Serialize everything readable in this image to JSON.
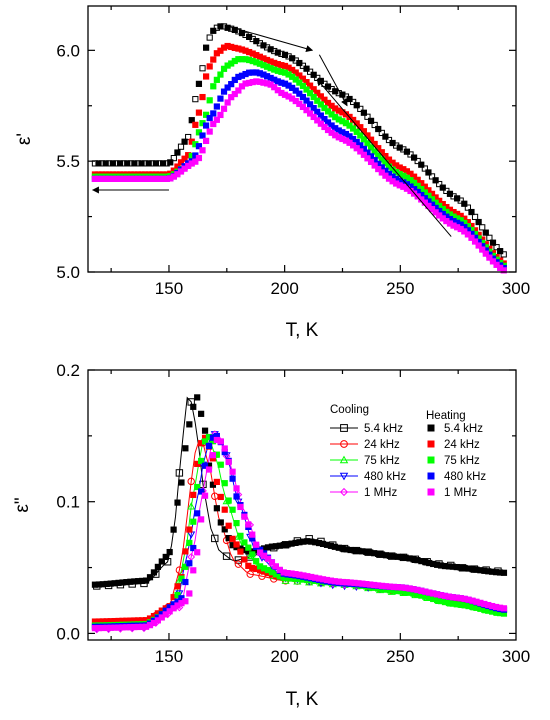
{
  "chart_data": [
    {
      "type": "scatter",
      "title": "",
      "xlabel": "T, K",
      "ylabel": "ε'",
      "xlim": [
        115,
        300
      ],
      "ylim": [
        5.0,
        6.2
      ],
      "xticks": [
        "150",
        "200",
        "250",
        "300"
      ],
      "yticks": [
        "5.0",
        "5.5",
        "6.0"
      ],
      "grid": false,
      "legend": "none",
      "series": [
        {
          "color": "#000000",
          "x": [
            118,
            150,
            158,
            163,
            167,
            170,
            173,
            176,
            200,
            225,
            250,
            275,
            296
          ],
          "y": [
            5.49,
            5.49,
            5.6,
            5.85,
            6.05,
            6.1,
            6.11,
            6.1,
            5.98,
            5.8,
            5.56,
            5.33,
            5.07
          ]
        },
        {
          "color": "#ff0000",
          "x": [
            118,
            150,
            158,
            163,
            167,
            171,
            175,
            179,
            200,
            225,
            250,
            275,
            296
          ],
          "y": [
            5.44,
            5.44,
            5.52,
            5.72,
            5.92,
            5.99,
            6.02,
            6.01,
            5.93,
            5.72,
            5.47,
            5.26,
            5.03
          ]
        },
        {
          "color": "#00ff00",
          "x": [
            118,
            150,
            158,
            165,
            170,
            175,
            180,
            183,
            200,
            225,
            250,
            275,
            296
          ],
          "y": [
            5.43,
            5.43,
            5.48,
            5.68,
            5.86,
            5.93,
            5.96,
            5.96,
            5.9,
            5.68,
            5.44,
            5.24,
            5.02
          ]
        },
        {
          "color": "#0000ff",
          "x": [
            118,
            150,
            160,
            168,
            175,
            180,
            185,
            188,
            200,
            225,
            250,
            275,
            296
          ],
          "y": [
            5.42,
            5.42,
            5.5,
            5.7,
            5.83,
            5.88,
            5.9,
            5.9,
            5.85,
            5.63,
            5.41,
            5.22,
            5.01
          ]
        },
        {
          "color": "#ff00ff",
          "x": [
            118,
            150,
            162,
            170,
            178,
            183,
            188,
            193,
            200,
            225,
            250,
            275,
            296
          ],
          "y": [
            5.42,
            5.42,
            5.5,
            5.68,
            5.8,
            5.85,
            5.86,
            5.85,
            5.8,
            5.6,
            5.39,
            5.2,
            5.0
          ]
        }
      ],
      "arrows": [
        {
          "from": [
            175,
            6.11
          ],
          "to": [
            212,
            6.0
          ]
        },
        {
          "from": [
            215,
            5.98
          ],
          "to": [
            227,
            5.75
          ]
        },
        {
          "from": [
            272,
            5.16
          ],
          "to": [
            214,
            5.87
          ]
        },
        {
          "from": [
            150,
            5.37
          ],
          "to": [
            117,
            5.37
          ]
        }
      ]
    },
    {
      "type": "scatter",
      "title": "",
      "xlabel": "T, K",
      "ylabel": "ε\"",
      "xlim": [
        115,
        300
      ],
      "ylim": [
        -0.005,
        0.2
      ],
      "xticks": [
        "150",
        "200",
        "250",
        "300"
      ],
      "yticks": [
        "0.0",
        "0.1",
        "0.2"
      ],
      "grid": false,
      "legend": "top-right",
      "legend_titles": {
        "cooling": "Cooling",
        "heating": "Heating"
      },
      "series": [
        {
          "name": "5.4 kHz",
          "mode": "Cooling",
          "color": "#000000",
          "marker": "open-square",
          "x": [
            118,
            140,
            150,
            153,
            155,
            157,
            158,
            160,
            163,
            165,
            168,
            172,
            178,
            185,
            195,
            210,
            230,
            250,
            270,
            280,
            295
          ],
          "y": [
            0.036,
            0.038,
            0.055,
            0.09,
            0.13,
            0.165,
            0.18,
            0.175,
            0.14,
            0.11,
            0.08,
            0.062,
            0.055,
            0.058,
            0.065,
            0.072,
            0.063,
            0.058,
            0.052,
            0.049,
            0.047
          ]
        },
        {
          "name": "24 kHz",
          "mode": "Cooling",
          "color": "#ff0000",
          "marker": "open-circle",
          "x": [
            118,
            140,
            150,
            155,
            158,
            160,
            162,
            164,
            167,
            172,
            178,
            185,
            200,
            225,
            250,
            275,
            295
          ],
          "y": [
            0.008,
            0.009,
            0.02,
            0.05,
            0.09,
            0.12,
            0.145,
            0.148,
            0.13,
            0.085,
            0.055,
            0.045,
            0.04,
            0.038,
            0.032,
            0.024,
            0.017
          ]
        },
        {
          "name": "75 kHz",
          "mode": "Cooling",
          "color": "#00ff00",
          "marker": "open-triangle-up",
          "x": [
            118,
            140,
            152,
            157,
            160,
            163,
            165,
            167,
            170,
            175,
            182,
            190,
            200,
            225,
            250,
            275,
            295
          ],
          "y": [
            0.005,
            0.006,
            0.02,
            0.06,
            0.1,
            0.13,
            0.148,
            0.15,
            0.135,
            0.1,
            0.065,
            0.048,
            0.04,
            0.037,
            0.031,
            0.022,
            0.015
          ]
        },
        {
          "name": "480 kHz",
          "mode": "Cooling",
          "color": "#0000ff",
          "marker": "open-triangle-down",
          "x": [
            118,
            140,
            153,
            158,
            162,
            165,
            168,
            171,
            175,
            180,
            188,
            200,
            225,
            250,
            275,
            295
          ],
          "y": [
            0.004,
            0.005,
            0.02,
            0.06,
            0.1,
            0.13,
            0.15,
            0.152,
            0.135,
            0.1,
            0.06,
            0.042,
            0.036,
            0.033,
            0.025,
            0.017
          ]
        },
        {
          "name": "1 MHz",
          "mode": "Cooling",
          "color": "#ff00ff",
          "marker": "open-diamond",
          "x": [
            118,
            140,
            155,
            160,
            165,
            168,
            170,
            172,
            176,
            182,
            190,
            200,
            225,
            250,
            275,
            295
          ],
          "y": [
            0.003,
            0.004,
            0.02,
            0.06,
            0.11,
            0.14,
            0.152,
            0.15,
            0.13,
            0.095,
            0.06,
            0.044,
            0.037,
            0.034,
            0.026,
            0.018
          ]
        },
        {
          "name": "5.4 kHz",
          "mode": "Heating",
          "color": "#000000",
          "marker": "filled-square",
          "x": [
            118,
            140,
            150,
            155,
            157,
            160,
            162,
            165,
            168,
            172,
            178,
            185,
            195,
            210,
            230,
            250,
            270,
            295
          ],
          "y": [
            0.037,
            0.04,
            0.06,
            0.11,
            0.14,
            0.17,
            0.18,
            0.16,
            0.12,
            0.085,
            0.066,
            0.062,
            0.066,
            0.07,
            0.063,
            0.058,
            0.051,
            0.046
          ]
        },
        {
          "name": "24 kHz",
          "mode": "Heating",
          "color": "#ff0000",
          "marker": "filled-square",
          "x": [
            118,
            140,
            150,
            155,
            158,
            161,
            163,
            165,
            168,
            172,
            178,
            185,
            200,
            225,
            250,
            275,
            295
          ],
          "y": [
            0.009,
            0.01,
            0.02,
            0.04,
            0.07,
            0.11,
            0.14,
            0.15,
            0.14,
            0.105,
            0.07,
            0.05,
            0.042,
            0.039,
            0.033,
            0.025,
            0.018
          ]
        },
        {
          "name": "75 kHz",
          "mode": "Heating",
          "color": "#00ff00",
          "marker": "filled-square",
          "x": [
            118,
            140,
            152,
            157,
            160,
            163,
            165,
            168,
            172,
            176,
            182,
            190,
            200,
            225,
            250,
            275,
            295
          ],
          "y": [
            0.006,
            0.007,
            0.02,
            0.05,
            0.08,
            0.12,
            0.145,
            0.15,
            0.13,
            0.1,
            0.07,
            0.05,
            0.042,
            0.038,
            0.032,
            0.022,
            0.015
          ]
        },
        {
          "name": "480 kHz",
          "mode": "Heating",
          "color": "#0000ff",
          "marker": "filled-square",
          "x": [
            118,
            140,
            155,
            160,
            163,
            166,
            168,
            171,
            175,
            180,
            188,
            200,
            225,
            250,
            275,
            295
          ],
          "y": [
            0.005,
            0.006,
            0.025,
            0.06,
            0.1,
            0.13,
            0.148,
            0.15,
            0.135,
            0.1,
            0.065,
            0.045,
            0.038,
            0.035,
            0.027,
            0.018
          ]
        },
        {
          "name": "1 MHz",
          "mode": "Heating",
          "color": "#ff00ff",
          "marker": "filled-square",
          "x": [
            118,
            140,
            158,
            162,
            165,
            168,
            171,
            173,
            177,
            182,
            190,
            200,
            225,
            250,
            275,
            295
          ],
          "y": [
            0.004,
            0.005,
            0.025,
            0.06,
            0.1,
            0.13,
            0.148,
            0.145,
            0.125,
            0.09,
            0.06,
            0.046,
            0.039,
            0.035,
            0.027,
            0.019
          ]
        }
      ]
    }
  ]
}
